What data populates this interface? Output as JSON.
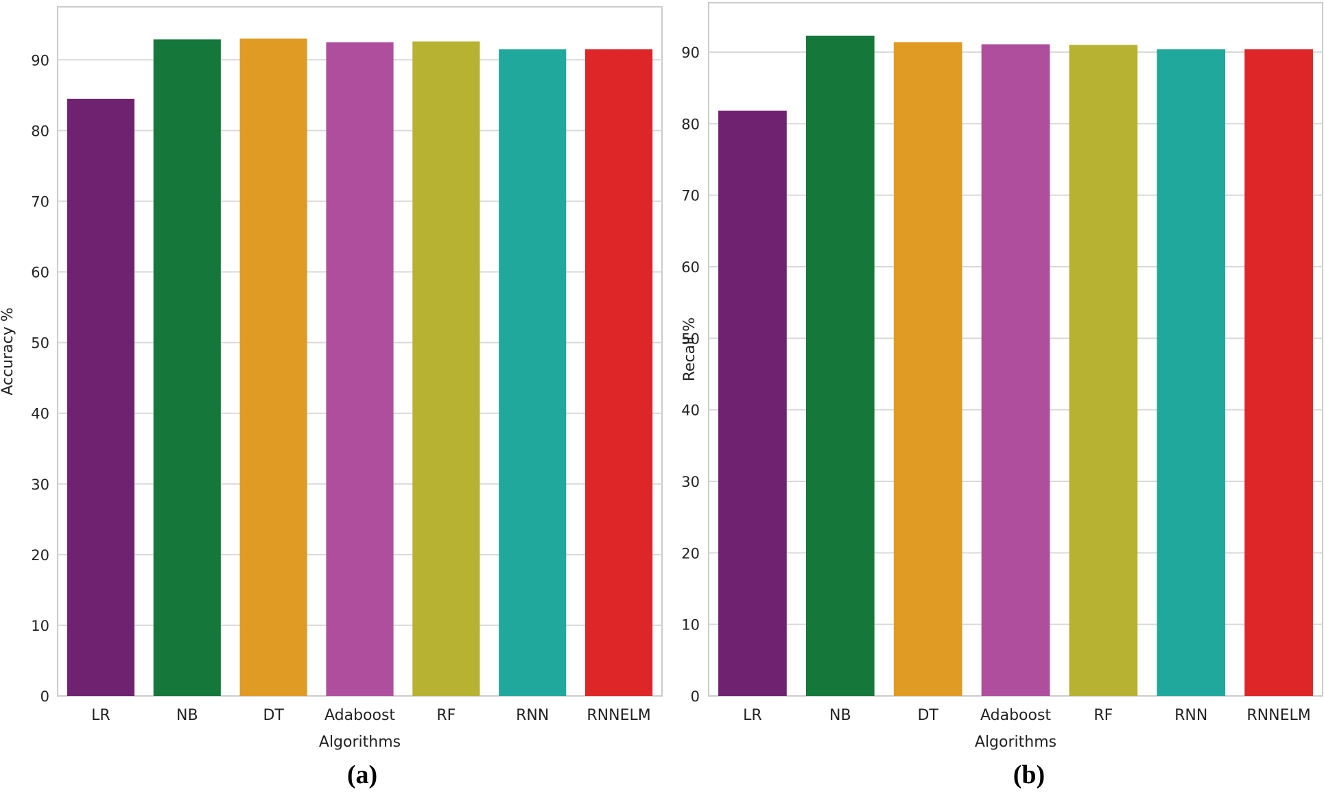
{
  "chart_data": [
    {
      "type": "bar",
      "panel_label": "(a)",
      "categories": [
        "LR",
        "NB",
        "DT",
        "Adaboost",
        "RF",
        "RNN",
        "RNNELM"
      ],
      "values": [
        84.5,
        92.9,
        93.0,
        92.5,
        92.6,
        91.5,
        91.5
      ],
      "colors": [
        "#6f226f",
        "#16773a",
        "#e09b25",
        "#b04e9e",
        "#b7b232",
        "#21a89c",
        "#de2527"
      ],
      "title": "",
      "xlabel": "Algorithms",
      "ylabel": "Accuracy %",
      "ylim": [
        0,
        97.5
      ],
      "yticks": [
        0,
        10,
        20,
        30,
        40,
        50,
        60,
        70,
        80,
        90
      ],
      "grid": true
    },
    {
      "type": "bar",
      "panel_label": "(b)",
      "categories": [
        "LR",
        "NB",
        "DT",
        "Adaboost",
        "RF",
        "RNN",
        "RNNELM"
      ],
      "values": [
        81.8,
        92.3,
        91.4,
        91.1,
        91.0,
        90.4,
        90.4
      ],
      "colors": [
        "#6f226f",
        "#16773a",
        "#e09b25",
        "#b04e9e",
        "#b7b232",
        "#21a89c",
        "#de2527"
      ],
      "title": "",
      "xlabel": "Algorithms",
      "ylabel": "Recall %",
      "ylim": [
        0,
        96.9
      ],
      "yticks": [
        0,
        10,
        20,
        30,
        40,
        50,
        60,
        70,
        80,
        90
      ],
      "grid": true
    }
  ]
}
